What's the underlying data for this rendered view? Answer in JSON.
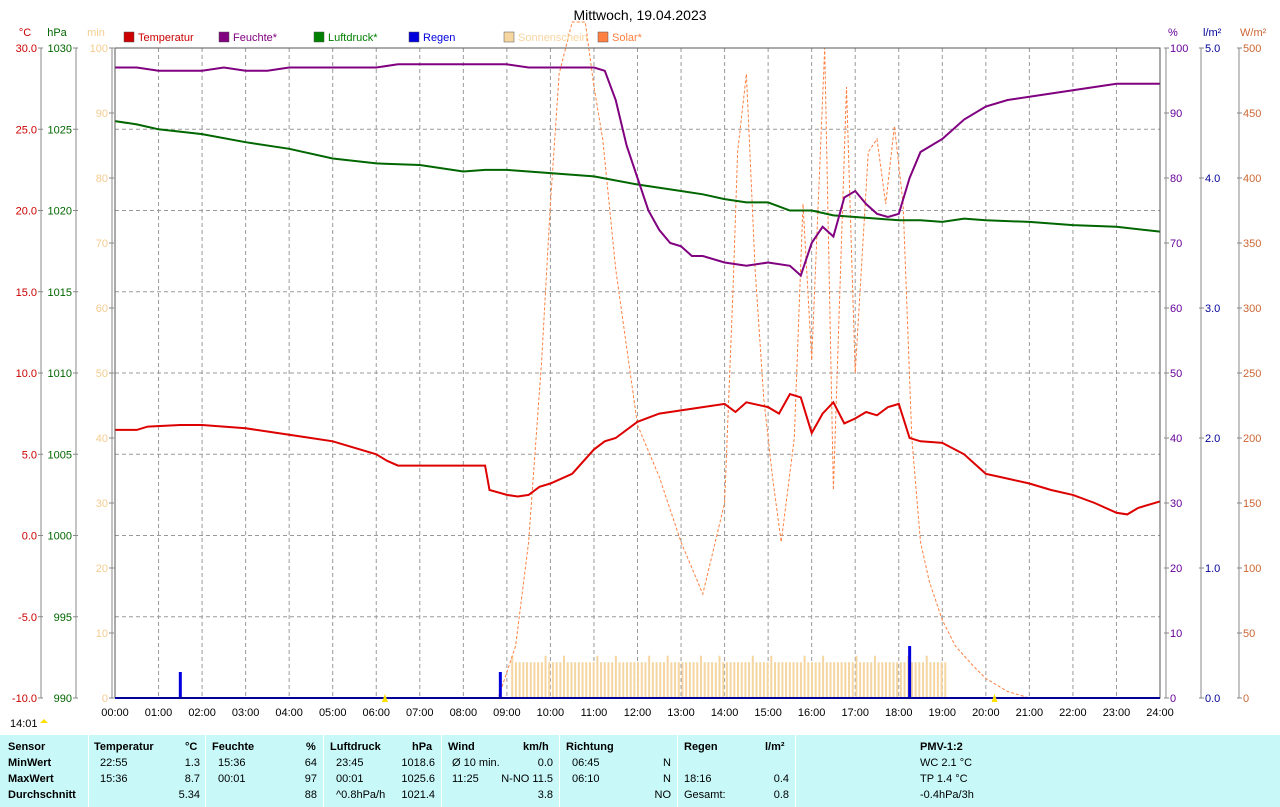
{
  "chart_data": {
    "type": "line",
    "title": "Mittwoch, 19.04.2023",
    "time_marker": "14:01",
    "x_ticks": [
      "00:00",
      "01:00",
      "02:00",
      "03:00",
      "04:00",
      "05:00",
      "06:00",
      "07:00",
      "08:00",
      "09:00",
      "10:00",
      "11:00",
      "12:00",
      "13:00",
      "14:00",
      "15:00",
      "16:00",
      "17:00",
      "18:00",
      "19:00",
      "20:00",
      "21:00",
      "22:00",
      "23:00",
      "24:00"
    ],
    "axes": {
      "temp": {
        "unit": "°C",
        "range": [
          -10,
          30
        ],
        "ticks": [
          "30.0",
          "25.0",
          "20.0",
          "15.0",
          "10.0",
          "5.0",
          "0.0",
          "-5.0",
          "-10.0"
        ],
        "color": "#cc0000"
      },
      "pressure": {
        "unit": "hPa",
        "range": [
          990,
          1030
        ],
        "ticks": [
          "1030",
          "1025",
          "1020",
          "1015",
          "1010",
          "1005",
          "1000",
          "995",
          "990"
        ],
        "color": "#006600"
      },
      "sunshine": {
        "unit": "min",
        "range": [
          0,
          100
        ],
        "ticks": [
          "100",
          "90",
          "80",
          "70",
          "60",
          "50",
          "40",
          "30",
          "20",
          "10",
          "0"
        ],
        "color": "#f5cc90"
      },
      "humidity": {
        "unit": "%",
        "range": [
          0,
          100
        ],
        "ticks": [
          "100",
          "90",
          "80",
          "70",
          "60",
          "50",
          "40",
          "30",
          "20",
          "10",
          "0"
        ],
        "color": "#660099"
      },
      "rain": {
        "unit": "l/m²",
        "range": [
          0,
          5
        ],
        "ticks": [
          "5.0",
          "4.0",
          "3.0",
          "2.0",
          "1.0",
          "0.0"
        ],
        "color": "#000099"
      },
      "solar": {
        "unit": "W/m²",
        "range": [
          0,
          500
        ],
        "ticks": [
          "500",
          "450",
          "400",
          "350",
          "300",
          "250",
          "200",
          "150",
          "100",
          "50",
          "0"
        ],
        "color": "#cc6633"
      }
    },
    "legend": [
      {
        "label": "Temperatur",
        "color": "#cc0000"
      },
      {
        "label": "Feuchte*",
        "color": "#800080"
      },
      {
        "label": "Luftdruck*",
        "color": "#008000"
      },
      {
        "label": "Regen",
        "color": "#0000dd"
      },
      {
        "label": "Sonnenschein",
        "color": "#f5d5a0"
      },
      {
        "label": "Solar*",
        "color": "#ff8040"
      }
    ],
    "series": [
      {
        "name": "Temperatur",
        "axis": "temp",
        "color": "#dd0000",
        "x": [
          0,
          0.5,
          0.75,
          1.5,
          2,
          3,
          3.5,
          4,
          4.5,
          5,
          5.5,
          6,
          6.25,
          6.5,
          7,
          7.5,
          8,
          8.5,
          8.6,
          9,
          9.25,
          9.5,
          9.75,
          10,
          10.5,
          11,
          11.25,
          11.5,
          12,
          12.5,
          13,
          13.5,
          14,
          14.25,
          14.5,
          15,
          15.25,
          15.5,
          15.75,
          16,
          16.25,
          16.5,
          16.75,
          17,
          17.25,
          17.5,
          17.75,
          18,
          18.25,
          18.5,
          19,
          19.5,
          20,
          20.5,
          21,
          21.5,
          22,
          22.5,
          23,
          23.25,
          23.5,
          24
        ],
        "y": [
          6.5,
          6.5,
          6.7,
          6.8,
          6.8,
          6.6,
          6.4,
          6.2,
          6.0,
          5.8,
          5.4,
          5.0,
          4.6,
          4.3,
          4.3,
          4.3,
          4.3,
          4.3,
          2.8,
          2.5,
          2.4,
          2.5,
          3.0,
          3.2,
          3.8,
          5.3,
          5.8,
          6.0,
          7.0,
          7.5,
          7.7,
          7.9,
          8.1,
          7.6,
          8.2,
          7.9,
          7.5,
          8.7,
          8.5,
          6.3,
          7.5,
          8.2,
          6.9,
          7.2,
          7.6,
          7.4,
          7.9,
          8.1,
          6.0,
          5.8,
          5.7,
          5.0,
          3.8,
          3.5,
          3.2,
          2.8,
          2.5,
          2.0,
          1.4,
          1.3,
          1.7,
          2.1
        ]
      },
      {
        "name": "Feuchte",
        "axis": "humidity",
        "color": "#800080",
        "x": [
          0,
          0.5,
          1,
          1.5,
          2,
          2.5,
          3,
          3.5,
          4,
          4.5,
          5,
          5.5,
          6,
          6.5,
          7,
          7.5,
          8,
          8.5,
          9,
          9.5,
          10,
          10.5,
          11,
          11.25,
          11.5,
          11.75,
          12,
          12.25,
          12.5,
          12.75,
          13,
          13.25,
          13.5,
          14,
          14.5,
          15,
          15.5,
          15.75,
          16,
          16.25,
          16.5,
          16.75,
          17,
          17.25,
          17.5,
          17.75,
          18,
          18.25,
          18.5,
          19,
          19.5,
          20,
          20.5,
          21,
          21.5,
          22,
          22.5,
          23,
          23.5,
          24
        ],
        "y": [
          97,
          97,
          96.5,
          96.5,
          96.5,
          97,
          96.5,
          96.5,
          97,
          97,
          97,
          97,
          97,
          97.5,
          97.5,
          97.5,
          97.5,
          97.5,
          97.5,
          97,
          97,
          97,
          97,
          96.5,
          92,
          85,
          80,
          75,
          72,
          70,
          69.5,
          68,
          68,
          67,
          66.5,
          67,
          66.5,
          65,
          70,
          72.5,
          71,
          77,
          78,
          76,
          74.5,
          74,
          74.5,
          80,
          84,
          86,
          89,
          91,
          92,
          92.5,
          93,
          93.5,
          94,
          94.5,
          94.5,
          94.5
        ]
      },
      {
        "name": "Luftdruck",
        "axis": "pressure",
        "color": "#006600",
        "x": [
          0,
          0.5,
          1,
          2,
          3,
          4,
          5,
          6,
          7,
          8,
          8.5,
          9,
          9.5,
          10,
          11,
          12,
          12.5,
          13,
          13.5,
          14,
          14.5,
          15,
          15.5,
          16,
          16.5,
          17,
          17.5,
          18,
          18.5,
          19,
          19.5,
          20,
          21,
          22,
          23,
          24
        ],
        "y": [
          1025.5,
          1025.3,
          1025.0,
          1024.7,
          1024.2,
          1023.8,
          1023.2,
          1022.9,
          1022.8,
          1022.4,
          1022.5,
          1022.5,
          1022.4,
          1022.3,
          1022.1,
          1021.6,
          1021.4,
          1021.2,
          1021.0,
          1020.7,
          1020.5,
          1020.5,
          1020.0,
          1020.0,
          1019.7,
          1019.6,
          1019.5,
          1019.4,
          1019.4,
          1019.3,
          1019.5,
          1019.4,
          1019.3,
          1019.1,
          1019.0,
          1018.7
        ]
      },
      {
        "name": "Solar",
        "axis": "solar",
        "color": "#ff8040",
        "x": [
          0,
          8.8,
          9.2,
          9.5,
          9.8,
          10,
          10.2,
          10.5,
          10.8,
          11,
          11.2,
          11.5,
          12,
          12.5,
          13,
          13.5,
          14,
          14.2,
          14.3,
          14.5,
          14.7,
          14.9,
          15.1,
          15.3,
          15.6,
          15.8,
          16,
          16.3,
          16.5,
          16.8,
          17,
          17.3,
          17.5,
          17.7,
          17.9,
          18.1,
          18.3,
          18.5,
          18.7,
          19,
          19.3,
          19.7,
          20,
          20.5,
          21,
          24
        ],
        "y": [
          0,
          0,
          40,
          120,
          260,
          380,
          480,
          520,
          520,
          470,
          430,
          330,
          210,
          170,
          120,
          80,
          150,
          320,
          420,
          480,
          330,
          230,
          170,
          120,
          200,
          380,
          260,
          500,
          160,
          470,
          250,
          420,
          430,
          380,
          440,
          380,
          200,
          120,
          90,
          60,
          40,
          25,
          15,
          5,
          0,
          0
        ]
      },
      {
        "name": "Regen",
        "axis": "rain",
        "color": "#0000dd",
        "x": [
          1.5,
          8.85,
          18.25
        ],
        "y": [
          0.2,
          0.2,
          0.4
        ]
      },
      {
        "name": "Sonnenschein",
        "axis": "sunshine",
        "color": "#f5d5a0",
        "x_start": 9.1,
        "x_end": 19.05,
        "y": 5.5
      }
    ]
  },
  "stats": {
    "headers": {
      "sensor": "Sensor",
      "temperatur": "Temperatur",
      "temp_unit": "°C",
      "feuchte": "Feuchte",
      "feuchte_unit": "%",
      "luftdruck": "Luftdruck",
      "luftdruck_unit": "hPa",
      "wind": "Wind",
      "wind_unit": "km/h",
      "richtung": "Richtung",
      "regen": "Regen",
      "regen_unit": "l/m²",
      "pmv": "PMV-1:2"
    },
    "rows": [
      {
        "label": "MinWert",
        "temp_time": "22:55",
        "temp": "1.3",
        "hum_time": "15:36",
        "hum": "64",
        "press_time": "23:45",
        "press": "1018.6",
        "wind_label": "Ø 10 min.",
        "wind": "0.0",
        "dir_time": "06:45",
        "dir": "N",
        "rain_time": "",
        "rain": "",
        "pmv": "WC 2.1 °C"
      },
      {
        "label": "MaxWert",
        "temp_time": "15:36",
        "temp": "8.7",
        "hum_time": "00:01",
        "hum": "97",
        "press_time": "00:01",
        "press": "1025.6",
        "wind_label": "11:25",
        "wind": "N-NO 11.5",
        "dir_time": "06:10",
        "dir": "N",
        "rain_time": "18:16",
        "rain": "0.4",
        "pmv": "TP 1.4 °C"
      },
      {
        "label": "Durchschnitt",
        "temp_time": "",
        "temp": "5.34",
        "hum_time": "",
        "hum": "88",
        "press_time": "^0.8hPa/h",
        "press": "1021.4",
        "wind_label": "",
        "wind": "3.8",
        "dir_time": "",
        "dir": "NO",
        "rain_time": "Gesamt:",
        "rain": "0.8",
        "pmv": "-0.4hPa/3h"
      }
    ]
  }
}
